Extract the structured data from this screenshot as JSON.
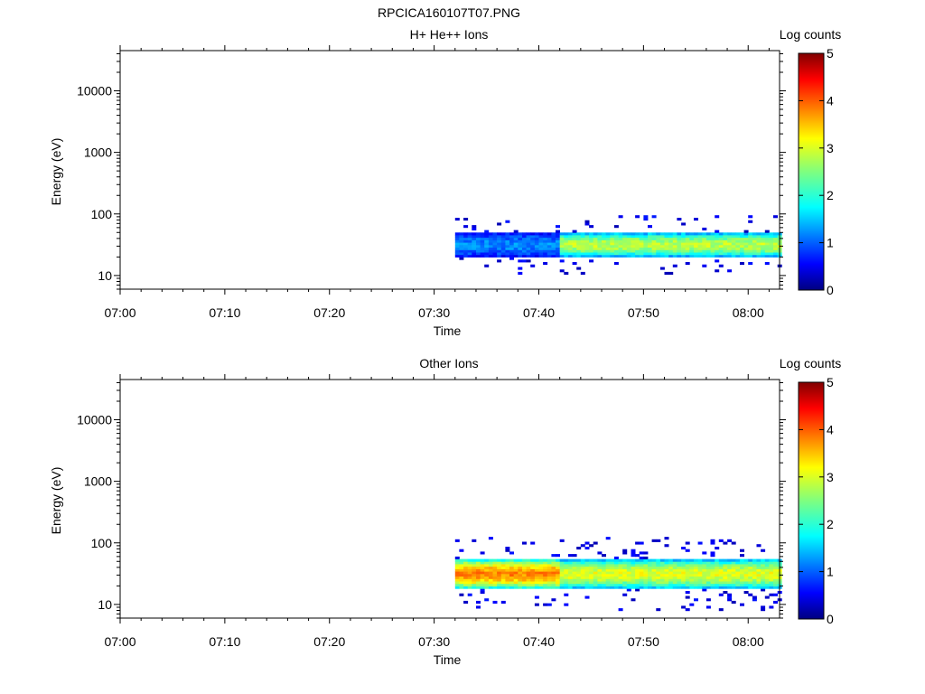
{
  "page_title": "RPCICA160107T07.PNG",
  "chart_data": [
    {
      "type": "heatmap",
      "title": "H+ He++ Ions",
      "xlabel": "Time",
      "ylabel": "Energy (eV)",
      "y_scale": "log",
      "ylim": [
        6,
        45000
      ],
      "xlim_minutes": [
        0,
        63
      ],
      "x_tick_labels": [
        "07:00",
        "07:10",
        "07:20",
        "07:30",
        "07:40",
        "07:50",
        "08:00"
      ],
      "x_tick_minutes": [
        0,
        10,
        20,
        30,
        40,
        50,
        60
      ],
      "y_tick_labels": [
        "10",
        "100",
        "1000",
        "10000"
      ],
      "y_tick_values": [
        10,
        100,
        1000,
        10000
      ],
      "colorbar": {
        "label": "Log counts",
        "range": [
          0,
          5
        ],
        "tick_labels": [
          "0",
          "1",
          "2",
          "3",
          "4",
          "5"
        ]
      },
      "data_start": "07:32",
      "data_end": "08:03",
      "core_band_energy_ev": [
        20,
        50
      ],
      "log_counts_before_0741": 1.3,
      "log_counts_after_0741": 2.8,
      "grid": false
    },
    {
      "type": "heatmap",
      "title": "Other Ions",
      "xlabel": "Time",
      "ylabel": "Energy (eV)",
      "y_scale": "log",
      "ylim": [
        6,
        45000
      ],
      "xlim_minutes": [
        0,
        63
      ],
      "x_tick_labels": [
        "07:00",
        "07:10",
        "07:20",
        "07:30",
        "07:40",
        "07:50",
        "08:00"
      ],
      "x_tick_minutes": [
        0,
        10,
        20,
        30,
        40,
        50,
        60
      ],
      "y_tick_labels": [
        "10",
        "100",
        "1000",
        "10000"
      ],
      "y_tick_values": [
        10,
        100,
        1000,
        10000
      ],
      "colorbar": {
        "label": "Log counts",
        "range": [
          0,
          5
        ],
        "tick_labels": [
          "0",
          "1",
          "2",
          "3",
          "4",
          "5"
        ]
      },
      "data_start": "07:32",
      "data_end": "08:03",
      "core_band_energy_ev": [
        18,
        55
      ],
      "log_counts_before_0741": 3.7,
      "log_counts_after_0741": 3.0,
      "grid": false
    }
  ]
}
